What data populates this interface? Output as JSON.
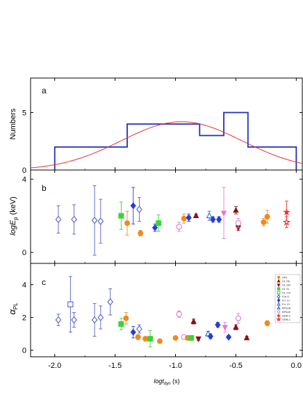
{
  "chart_data": [
    {
      "type": "histogram",
      "panel_label": "a",
      "ylabel": "Numbers",
      "xlim": [
        -2.2,
        0.05
      ],
      "ylim": [
        0,
        8
      ],
      "yticks": [
        0,
        5
      ],
      "bins": [
        {
          "x0": -2.0,
          "x1": -1.4,
          "count": 2
        },
        {
          "x0": -1.4,
          "x1": -0.8,
          "count": 4
        },
        {
          "x0": -0.8,
          "x1": -0.6,
          "count": 3
        },
        {
          "x0": -0.6,
          "x1": -0.4,
          "count": 5
        },
        {
          "x0": -0.4,
          "x1": 0.0,
          "count": 2
        }
      ],
      "fit": {
        "type": "gaussian",
        "amplitude": 4.2,
        "mean": -0.95,
        "sigma": 0.5,
        "color": "#e8302e"
      },
      "colors": {
        "hist": "#1f2fbf"
      }
    },
    {
      "type": "scatter",
      "panel_label": "b",
      "ylabel": "logE_p (keV)",
      "xlim": [
        -2.2,
        0.05
      ],
      "ylim": [
        -0.6,
        4.5
      ],
      "yticks": [
        0,
        4
      ],
      "points": [
        {
          "x": -1.97,
          "y": 1.8,
          "err": 0.75,
          "marker": "diamond-open",
          "color": "#5560c8"
        },
        {
          "x": -1.84,
          "y": 1.8,
          "err": 0.8,
          "marker": "diamond-open",
          "color": "#5560c8"
        },
        {
          "x": -1.67,
          "y": 1.75,
          "err": 1.9,
          "marker": "diamond-open",
          "color": "#5560c8"
        },
        {
          "x": -1.62,
          "y": 1.7,
          "err": 1.2,
          "marker": "diamond-open",
          "color": "#5560c8"
        },
        {
          "x": -1.35,
          "y": 2.55,
          "err": 1.0,
          "marker": "diamond",
          "color": "#2b3bd6"
        },
        {
          "x": -1.3,
          "y": 2.35,
          "err": 0.65,
          "marker": "diamond-open",
          "color": "#5560c8"
        },
        {
          "x": -1.45,
          "y": 2.0,
          "err": 0.75,
          "marker": "square",
          "color": "#3ad43a"
        },
        {
          "x": -1.4,
          "y": 1.6,
          "err": 0.65,
          "marker": "circle",
          "color": "#f08a1c"
        },
        {
          "x": -1.29,
          "y": 1.05,
          "err": 0.15,
          "marker": "circle",
          "color": "#f08a1c"
        },
        {
          "x": -1.17,
          "y": 1.35,
          "err": 0.2,
          "marker": "diamond",
          "color": "#2b3bd6"
        },
        {
          "x": -1.14,
          "y": 1.6,
          "err": 0.45,
          "marker": "square",
          "color": "#3ad43a"
        },
        {
          "x": -0.97,
          "y": 1.4,
          "err": 0.25,
          "marker": "circle-open",
          "color": "#e07ad8"
        },
        {
          "x": -0.93,
          "y": 1.85,
          "err": 0.25,
          "marker": "circle",
          "color": "#f08a1c"
        },
        {
          "x": -0.89,
          "y": 1.9,
          "err": 0.2,
          "marker": "diamond",
          "color": "#2b3bd6"
        },
        {
          "x": -0.83,
          "y": 2.0,
          "err": 0.1,
          "marker": "triangle-up",
          "color": "#8b1010"
        },
        {
          "x": -0.72,
          "y": 2.0,
          "err": 0.25,
          "marker": "triangle-up-open",
          "color": "#2b6bd6"
        },
        {
          "x": -0.69,
          "y": 1.8,
          "err": 0.15,
          "marker": "diamond",
          "color": "#2b3bd6"
        },
        {
          "x": -0.64,
          "y": 1.8,
          "err": 0.15,
          "marker": "diamond",
          "color": "#2b3bd6"
        },
        {
          "x": -0.6,
          "y": 2.15,
          "err": 1.4,
          "marker": "triangle-down",
          "color": "#e07ad8"
        },
        {
          "x": -0.5,
          "y": 2.3,
          "err": 0.2,
          "marker": "triangle-up",
          "color": "#8b1010"
        },
        {
          "x": -0.48,
          "y": 1.35,
          "err": 0.15,
          "marker": "triangle-down",
          "color": "#8b1010"
        },
        {
          "x": -0.48,
          "y": 1.6,
          "err": 0.25,
          "marker": "circle-open",
          "color": "#e07ad8"
        },
        {
          "x": -0.27,
          "y": 1.65,
          "err": 0.2,
          "marker": "circle",
          "color": "#f08a1c"
        },
        {
          "x": -0.24,
          "y": 1.95,
          "err": 0.35,
          "marker": "circle",
          "color": "#f08a1c"
        },
        {
          "x": -0.08,
          "y": 2.2,
          "err": 0.6,
          "marker": "star",
          "color": "#e8302e"
        },
        {
          "x": -0.08,
          "y": 1.65,
          "err": 0.3,
          "marker": "star-open",
          "color": "#e8302e"
        }
      ]
    },
    {
      "type": "scatter",
      "panel_label": "c",
      "ylabel": "α_PL",
      "xlim": [
        -2.2,
        0.05
      ],
      "ylim": [
        -0.4,
        5.3
      ],
      "xticks": [
        -2.0,
        -1.5,
        -1.0,
        -0.5,
        0.0
      ],
      "xtick_labels": [
        "-2.0",
        "-1.5",
        "-1.0",
        "-0.5",
        "0.0"
      ],
      "xlabel": "logt_dyn (s)",
      "yticks": [
        0,
        2,
        4
      ],
      "legend": {
        "placement": "upper right",
        "entries": [
          "SPs",
          "X1 Dfr",
          "X1 GR",
          "X1 Sr",
          "X1 Cm",
          "Fra G",
          "Frr 12",
          "Frr 13",
          "BPsnB",
          "BPsnE",
          "GRB 1",
          "GRB 1"
        ]
      },
      "points": [
        {
          "x": -1.97,
          "y": 1.85,
          "err": 0.35,
          "marker": "diamond-open",
          "color": "#5560c8"
        },
        {
          "x": -1.87,
          "y": 2.8,
          "err": 1.7,
          "marker": "square-open",
          "color": "#5560c8"
        },
        {
          "x": -1.84,
          "y": 1.85,
          "err": 0.45,
          "marker": "diamond-open",
          "color": "#5560c8"
        },
        {
          "x": -1.67,
          "y": 1.85,
          "err": 1.0,
          "marker": "diamond-open",
          "color": "#5560c8"
        },
        {
          "x": -1.62,
          "y": 2.0,
          "err": 0.7,
          "marker": "diamond-open",
          "color": "#5560c8"
        },
        {
          "x": -1.54,
          "y": 2.95,
          "err": 0.8,
          "marker": "diamond-open",
          "color": "#5560c8"
        },
        {
          "x": -1.45,
          "y": 1.6,
          "err": 0.35,
          "marker": "square",
          "color": "#3ad43a"
        },
        {
          "x": -1.41,
          "y": 1.95,
          "err": 0.35,
          "marker": "circle",
          "color": "#f08a1c"
        },
        {
          "x": -1.35,
          "y": 1.1,
          "err": 0.35,
          "marker": "diamond",
          "color": "#2b3bd6"
        },
        {
          "x": -1.3,
          "y": 1.3,
          "err": 0.25,
          "marker": "diamond-open",
          "color": "#5560c8"
        },
        {
          "x": -1.31,
          "y": 0.8,
          "err": 0.15,
          "marker": "circle",
          "color": "#f08a1c"
        },
        {
          "x": -1.25,
          "y": 0.7,
          "err": 0.1,
          "marker": "circle",
          "color": "#f08a1c"
        },
        {
          "x": -1.21,
          "y": 0.7,
          "err": 0.5,
          "marker": "square",
          "color": "#3ad43a"
        },
        {
          "x": -1.13,
          "y": 0.55,
          "err": 0.1,
          "marker": "circle",
          "color": "#f08a1c"
        },
        {
          "x": -1.0,
          "y": 0.75,
          "err": 0.1,
          "marker": "circle",
          "color": "#f08a1c"
        },
        {
          "x": -0.97,
          "y": 2.2,
          "err": 0.2,
          "marker": "circle-open",
          "color": "#e07ad8"
        },
        {
          "x": -0.93,
          "y": 0.8,
          "err": 0.1,
          "marker": "circle-open",
          "color": "#e07ad8"
        },
        {
          "x": -0.9,
          "y": 0.75,
          "err": 0.1,
          "marker": "circle",
          "color": "#f08a1c"
        },
        {
          "x": -0.87,
          "y": 0.75,
          "err": 0.1,
          "marker": "square",
          "color": "#3ad43a"
        },
        {
          "x": -0.85,
          "y": 1.75,
          "err": 0.15,
          "marker": "triangle-up",
          "color": "#8b1010"
        },
        {
          "x": -0.81,
          "y": 0.7,
          "err": 0.1,
          "marker": "triangle-down",
          "color": "#8b1010"
        },
        {
          "x": -0.73,
          "y": 1.0,
          "err": 0.15,
          "marker": "triangle-up-open",
          "color": "#2b6bd6"
        },
        {
          "x": -0.71,
          "y": 0.85,
          "err": 0.15,
          "marker": "diamond",
          "color": "#2b3bd6"
        },
        {
          "x": -0.65,
          "y": 1.55,
          "err": 0.15,
          "marker": "diamond",
          "color": "#2b3bd6"
        },
        {
          "x": -0.59,
          "y": 1.4,
          "err": 0.3,
          "marker": "triangle-down",
          "color": "#e07ad8"
        },
        {
          "x": -0.56,
          "y": 0.8,
          "err": 0.1,
          "marker": "diamond",
          "color": "#2b3bd6"
        },
        {
          "x": -0.5,
          "y": 1.4,
          "err": 0.15,
          "marker": "triangle-up",
          "color": "#8b1010"
        },
        {
          "x": -0.48,
          "y": 1.95,
          "err": 0.3,
          "marker": "circle-open",
          "color": "#e07ad8"
        },
        {
          "x": -0.41,
          "y": 0.75,
          "err": 0.1,
          "marker": "triangle-up",
          "color": "#8b1010"
        },
        {
          "x": -0.24,
          "y": 1.65,
          "err": 0.15,
          "marker": "circle",
          "color": "#f08a1c"
        }
      ]
    }
  ],
  "legend_markers": [
    {
      "marker": "circle",
      "color": "#f08a1c"
    },
    {
      "marker": "triangle-up",
      "color": "#8b1010"
    },
    {
      "marker": "triangle-down",
      "color": "#8b1010"
    },
    {
      "marker": "square",
      "color": "#3ad43a"
    },
    {
      "marker": "square-open",
      "color": "#3ad43a"
    },
    {
      "marker": "diamond-open",
      "color": "#5560c8"
    },
    {
      "marker": "diamond",
      "color": "#2b3bd6"
    },
    {
      "marker": "triangle-up-open",
      "color": "#5560c8"
    },
    {
      "marker": "triangle-up-open",
      "color": "#2b6bd6"
    },
    {
      "marker": "circle-open",
      "color": "#e07ad8"
    },
    {
      "marker": "star",
      "color": "#e8302e"
    },
    {
      "marker": "star-open",
      "color": "#e8302e"
    }
  ]
}
